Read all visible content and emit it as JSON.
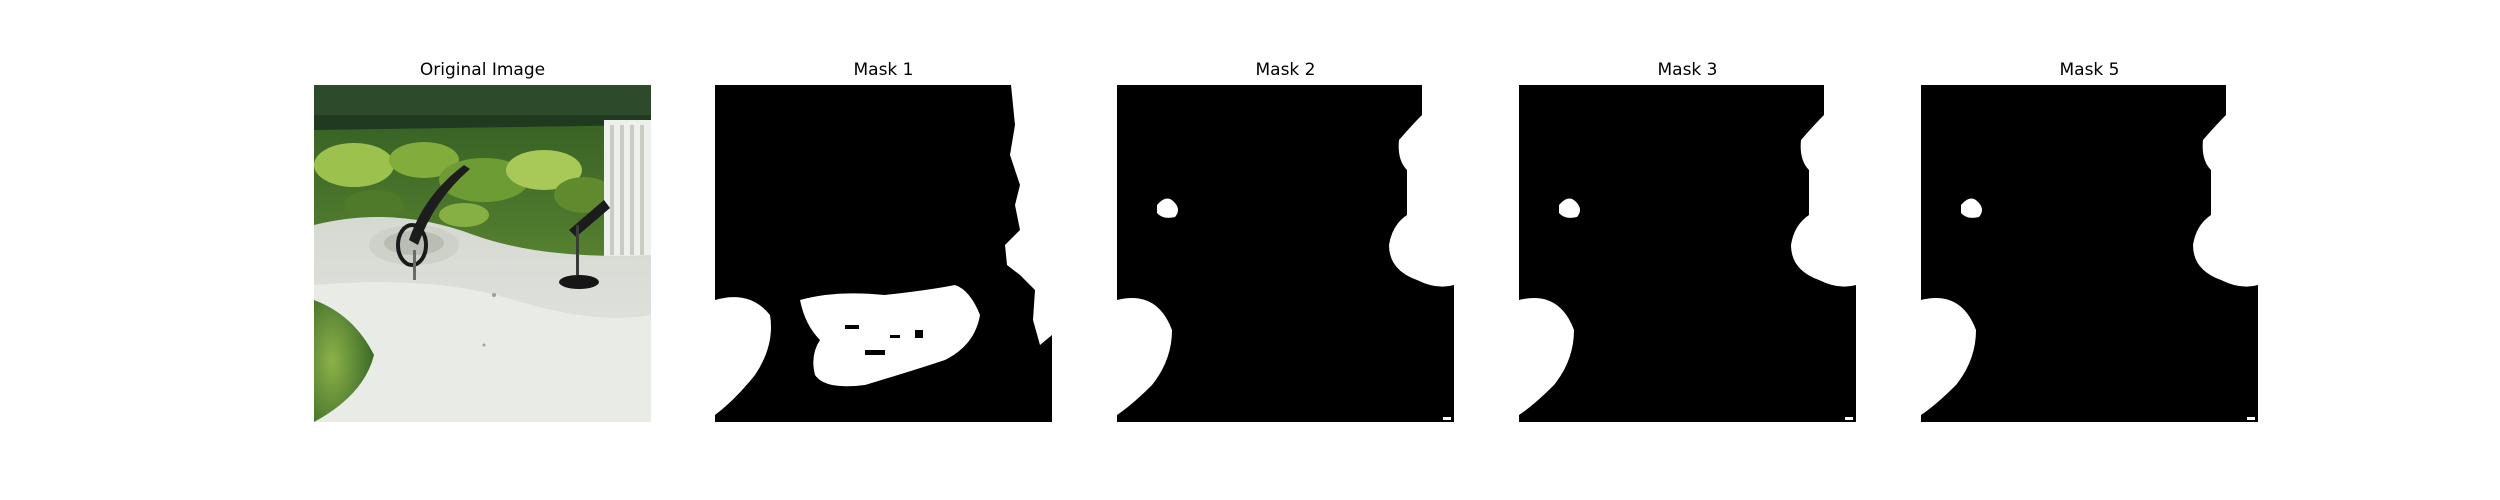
{
  "figure": {
    "panels": [
      {
        "title": "Original Image",
        "kind": "photo"
      },
      {
        "title": "Mask 1",
        "kind": "mask"
      },
      {
        "title": "Mask 2",
        "kind": "mask"
      },
      {
        "title": "Mask 3",
        "kind": "mask"
      },
      {
        "title": "Mask 5",
        "kind": "mask"
      }
    ]
  },
  "colors": {
    "background": "#ffffff",
    "mask_background": "#000000",
    "mask_foreground": "#ffffff",
    "foliage": "#6f9a3a",
    "surface": "#dfe2dc"
  }
}
